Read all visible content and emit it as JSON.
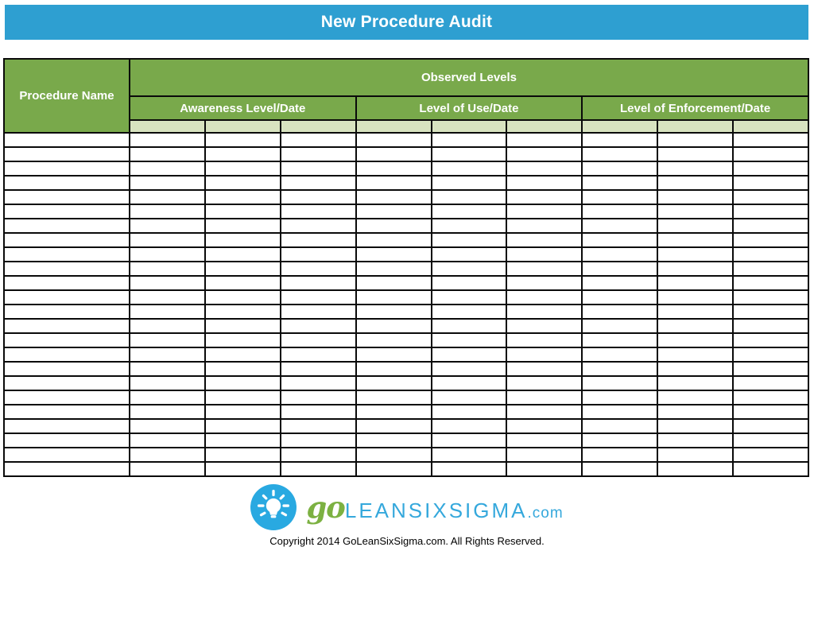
{
  "banner": {
    "title": "New Procedure Audit",
    "bg_color": "#2E9FD1"
  },
  "table": {
    "procedure_col_header": "Procedure Name",
    "observed_levels_header": "Observed Levels",
    "group_headers": [
      "Awareness Level/Date",
      "Level of Use/Date",
      "Level of Enforcement/Date"
    ],
    "subcolumns_per_group": 3,
    "entry_row_cells": 9,
    "body_rows": 24,
    "body_cols": 10,
    "colors": {
      "header_green": "#79A94B",
      "light_green": "#D8E3C0",
      "border": "#0a0a0a"
    }
  },
  "footer": {
    "logo": {
      "icon": "lightbulb-icon",
      "circle_color": "#29A9E1",
      "go_text": "go",
      "go_color": "#7CB142",
      "brand_text": "LEANSIXSIGMA",
      "brand_color": "#35A8DC",
      "tld_text": ".com"
    },
    "copyright": "Copyright 2014 GoLeanSixSigma.com. All Rights Reserved."
  }
}
